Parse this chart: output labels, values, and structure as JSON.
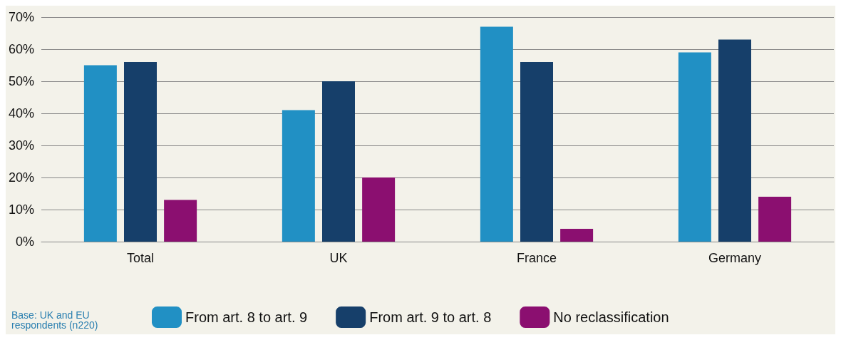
{
  "chart_data": {
    "type": "bar",
    "categories": [
      "Total",
      "UK",
      "France",
      "Germany"
    ],
    "series": [
      {
        "name": "From art. 8 to art. 9",
        "color": "#2190c4",
        "values": [
          55,
          41,
          67,
          59
        ]
      },
      {
        "name": "From art. 9 to art. 8",
        "color": "#163f6a",
        "values": [
          56,
          50,
          56,
          63
        ]
      },
      {
        "name": "No reclassification",
        "color": "#8b0f70",
        "values": [
          13,
          20,
          4,
          14
        ]
      }
    ],
    "ylim": [
      0,
      70
    ],
    "yticks": [
      {
        "value": 0,
        "label": "0%"
      },
      {
        "value": 10,
        "label": "10%"
      },
      {
        "value": 20,
        "label": "20%"
      },
      {
        "value": 30,
        "label": "30%"
      },
      {
        "value": 40,
        "label": "40%"
      },
      {
        "value": 50,
        "label": "50%"
      },
      {
        "value": 60,
        "label": "60%"
      },
      {
        "value": 70,
        "label": "70%"
      }
    ],
    "grid": "y",
    "legend": "bottom",
    "annotations": [
      "Base: UK and EU respondents (n220)"
    ]
  }
}
